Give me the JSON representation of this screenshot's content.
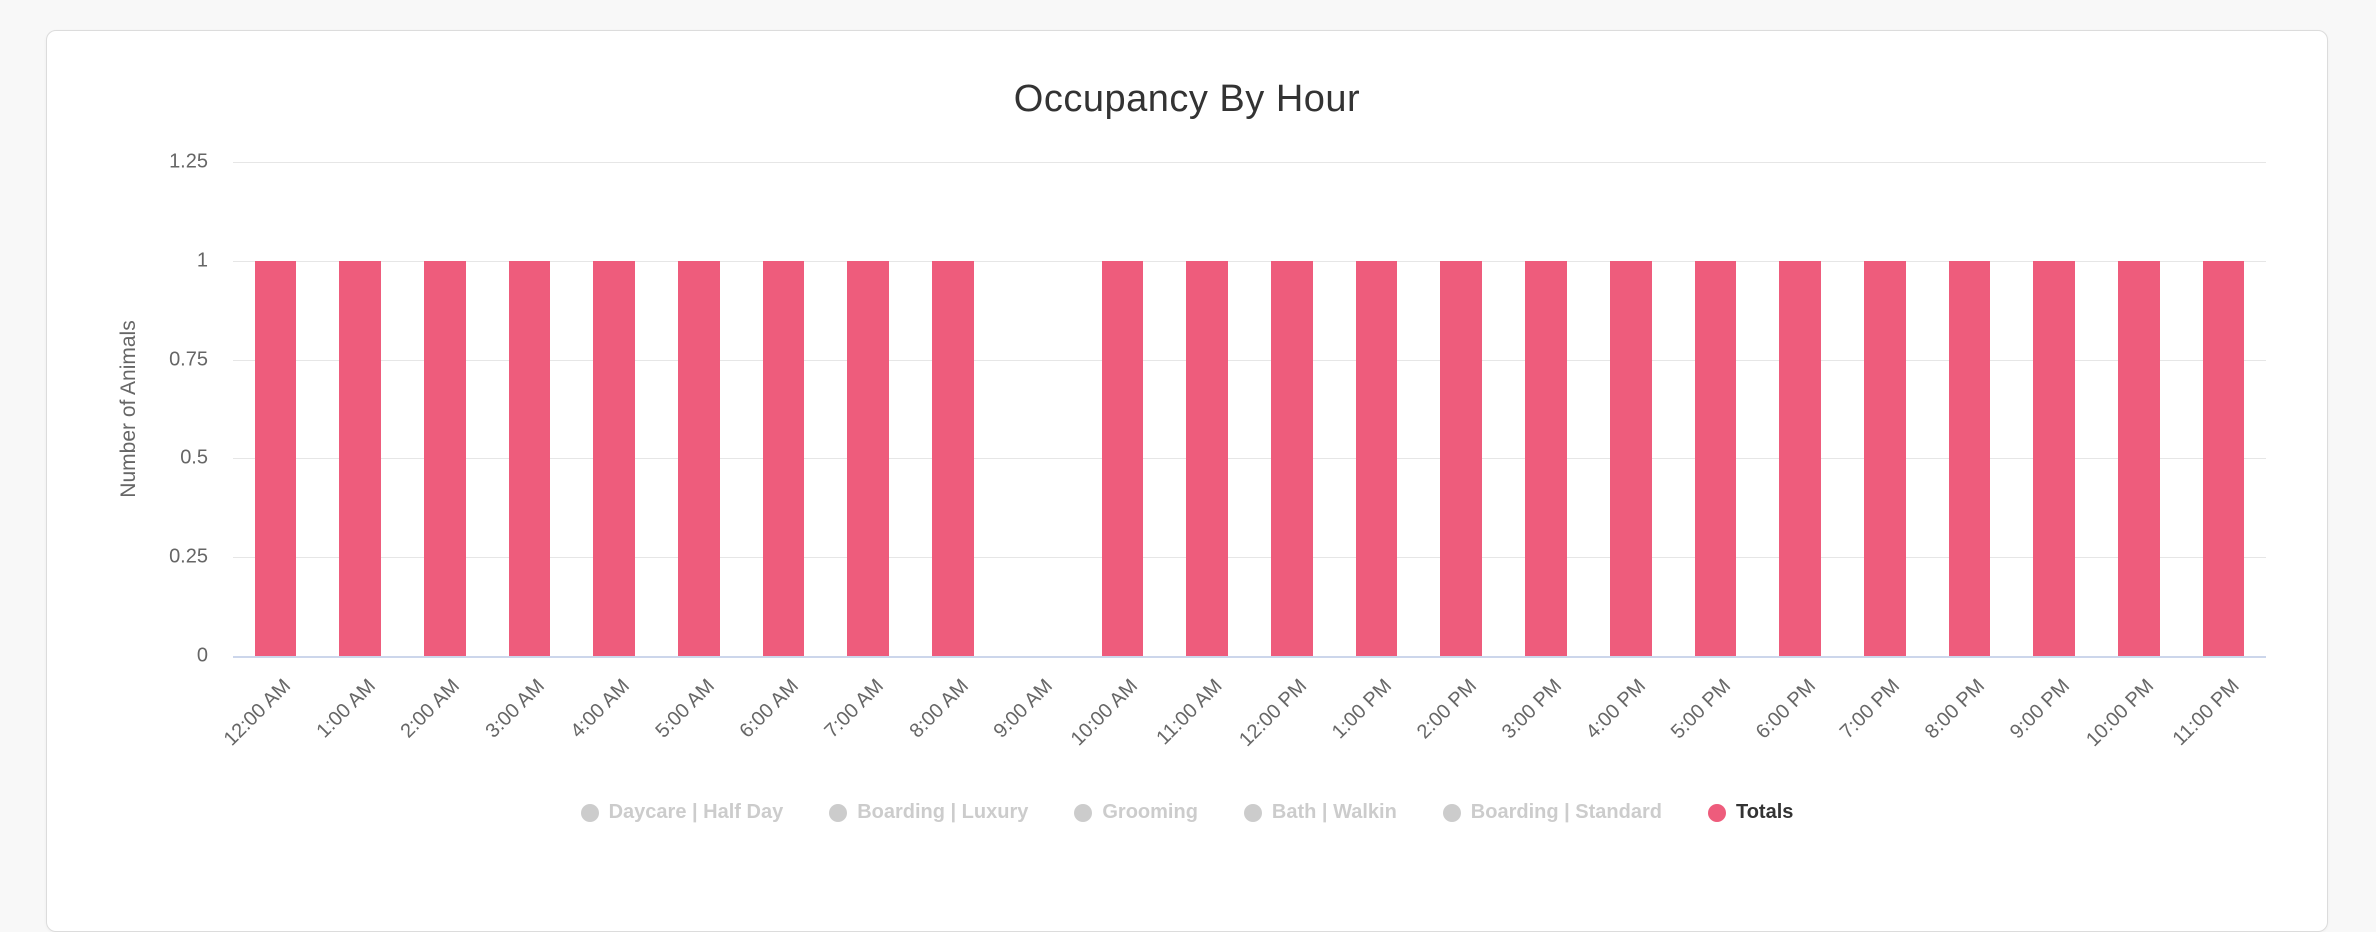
{
  "chart_data": {
    "type": "bar",
    "title": "Occupancy By Hour",
    "xlabel": "",
    "ylabel": "Number of Animals",
    "categories": [
      "12:00 AM",
      "1:00 AM",
      "2:00 AM",
      "3:00 AM",
      "4:00 AM",
      "5:00 AM",
      "6:00 AM",
      "7:00 AM",
      "8:00 AM",
      "9:00 AM",
      "10:00 AM",
      "11:00 AM",
      "12:00 PM",
      "1:00 PM",
      "2:00 PM",
      "3:00 PM",
      "4:00 PM",
      "5:00 PM",
      "6:00 PM",
      "7:00 PM",
      "8:00 PM",
      "9:00 PM",
      "10:00 PM",
      "11:00 PM"
    ],
    "series": [
      {
        "name": "Daycare | Half Day",
        "enabled": false,
        "marker_color": "#cccccc"
      },
      {
        "name": "Boarding | Luxury",
        "enabled": false,
        "marker_color": "#cccccc"
      },
      {
        "name": "Grooming",
        "enabled": false,
        "marker_color": "#cccccc"
      },
      {
        "name": "Bath | Walkin",
        "enabled": false,
        "marker_color": "#cccccc"
      },
      {
        "name": "Boarding | Standard",
        "enabled": false,
        "marker_color": "#cccccc"
      },
      {
        "name": "Totals",
        "enabled": true,
        "marker_color": "#ee5c7c",
        "values": [
          1,
          1,
          1,
          1,
          1,
          1,
          1,
          1,
          1,
          0,
          1,
          1,
          1,
          1,
          1,
          1,
          1,
          1,
          1,
          1,
          1,
          1,
          1,
          1
        ]
      }
    ],
    "yticks": [
      1.25,
      1,
      0.75,
      0.5,
      0.25,
      0
    ],
    "ylim": [
      0,
      1.25
    ],
    "grid": true,
    "legend_position": "bottom"
  },
  "colors": {
    "bar": "#ee5c7c",
    "grid_line": "#e6e6e6",
    "axis_line": "#ccd6eb",
    "tick_label": "#666666",
    "title_text": "#333333",
    "legend_disabled": "#cccccc",
    "legend_active_text": "#333333",
    "page_background": "#f8f8f8",
    "card_background": "#ffffff",
    "card_border": "#dcdcdc"
  }
}
